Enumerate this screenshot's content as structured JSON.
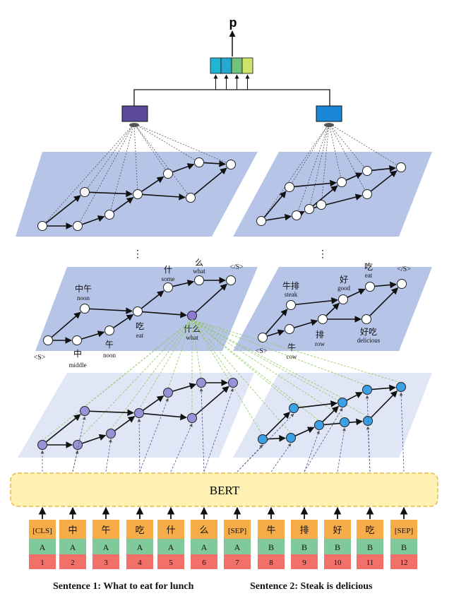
{
  "output": {
    "label": "p",
    "vector_colors": [
      "#21b5d5",
      "#27a9cf",
      "#73c27a",
      "#cde46a"
    ]
  },
  "encoders": {
    "left_color": "#5b4a9a",
    "right_color": "#1a86d6"
  },
  "plane_color": "#b6c4e8",
  "plane_light_color": "#e0e6f6",
  "ellipsis": "⋮",
  "bert": {
    "label": "BERT",
    "fill": "#fff2b3",
    "stroke": "#e8b94a"
  },
  "lattice1": {
    "nodes": [
      {
        "id": "s0",
        "char": "",
        "gloss": ""
      },
      {
        "id": "zhongwu",
        "char": "中午",
        "gloss": "noon"
      },
      {
        "id": "zhong",
        "char": "中",
        "gloss": "middle"
      },
      {
        "id": "wu",
        "char": "午",
        "gloss": "noon"
      },
      {
        "id": "chi",
        "char": "吃",
        "gloss": "eat"
      },
      {
        "id": "shen",
        "char": "什",
        "gloss": "some"
      },
      {
        "id": "shenme",
        "char": "什么",
        "gloss": "what"
      },
      {
        "id": "me",
        "char": "么",
        "gloss": "what"
      },
      {
        "id": "end",
        "char": "",
        "gloss": ""
      }
    ],
    "start_label": "<S>",
    "end_label": "</S>"
  },
  "lattice2": {
    "nodes": [
      {
        "id": "s0",
        "char": "",
        "gloss": ""
      },
      {
        "id": "niupai",
        "char": "牛排",
        "gloss": "steak"
      },
      {
        "id": "niu",
        "char": "牛",
        "gloss": "cow"
      },
      {
        "id": "hao",
        "char": "好",
        "gloss": "good"
      },
      {
        "id": "pai",
        "char": "排",
        "gloss": "row"
      },
      {
        "id": "chi",
        "char": "吃",
        "gloss": "eat"
      },
      {
        "id": "haochi",
        "char": "好吃",
        "gloss": "delicious"
      },
      {
        "id": "end",
        "char": "",
        "gloss": ""
      }
    ],
    "start_label": "<S>",
    "end_label": "</S>"
  },
  "tokens": [
    {
      "tok": "[CLS]",
      "seg": "A",
      "pos": "1"
    },
    {
      "tok": "中",
      "seg": "A",
      "pos": "2"
    },
    {
      "tok": "午",
      "seg": "A",
      "pos": "3"
    },
    {
      "tok": "吃",
      "seg": "A",
      "pos": "4"
    },
    {
      "tok": "什",
      "seg": "A",
      "pos": "5"
    },
    {
      "tok": "么",
      "seg": "A",
      "pos": "6"
    },
    {
      "tok": "[SEP]",
      "seg": "A",
      "pos": "7"
    },
    {
      "tok": "牛",
      "seg": "B",
      "pos": "8"
    },
    {
      "tok": "排",
      "seg": "B",
      "pos": "9"
    },
    {
      "tok": "好",
      "seg": "B",
      "pos": "10"
    },
    {
      "tok": "吃",
      "seg": "B",
      "pos": "11"
    },
    {
      "tok": "[SEP]",
      "seg": "B",
      "pos": "12"
    }
  ],
  "token_colors": {
    "tok": "#f7ac4a",
    "seg": "#7fc99a",
    "pos": "#f2706a"
  },
  "captions": {
    "sentence1": "Sentence 1: What to eat for lunch",
    "sentence2": "Sentence 2: Steak is delicious"
  }
}
